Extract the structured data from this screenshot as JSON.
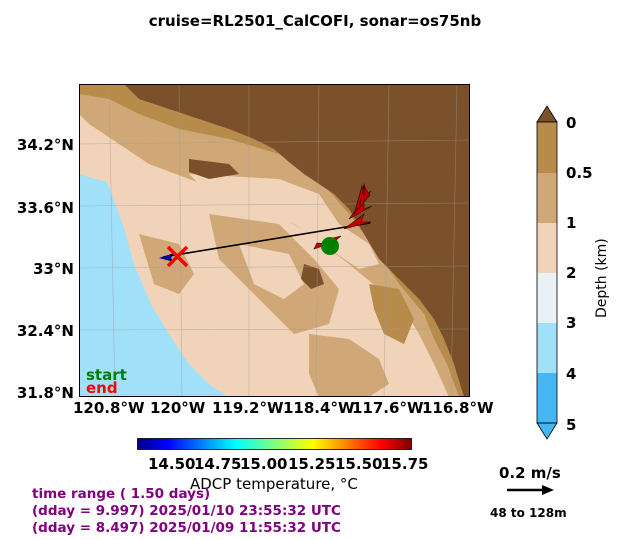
{
  "title": "cruise=RL2501_CalCOFI,   sonar=os75nb",
  "map": {
    "lat_labels": [
      "34.2°N",
      "33.6°N",
      "33°N",
      "32.4°N",
      "31.8°N"
    ],
    "lon_labels": [
      "120.8°W",
      "120°W",
      "119.2°W",
      "118.4°W",
      "117.6°W",
      "116.8°W"
    ],
    "extent": {
      "lon": [
        -121.0,
        -116.6
      ],
      "lat": [
        31.8,
        34.8
      ]
    }
  },
  "legend": {
    "start": "start",
    "end": "end",
    "start_color": "#008000",
    "end_color": "#ff0000"
  },
  "track": {
    "start": {
      "lon": -118.2,
      "lat": 33.2
    },
    "end": {
      "lon": -120.0,
      "lat": 33.1
    },
    "line": [
      [
        -120.1,
        33.1
      ],
      [
        -117.6,
        33.5
      ]
    ]
  },
  "depth_colorbar": {
    "label": "Depth (km)",
    "ticks": [
      "0",
      "0.5",
      "1",
      "2",
      "3",
      "4",
      "5"
    ],
    "colors": [
      "#b78c4b",
      "#d0a877",
      "#f0d3b8",
      "#e7f1f6",
      "#a0e0f8",
      "#45b6ef"
    ]
  },
  "temp_colorbar": {
    "label": "ADCP temperature, °C",
    "ticks": [
      "14.50",
      "14.75",
      "15.00",
      "15.25",
      "15.50",
      "15.75"
    ],
    "colormap": "jet"
  },
  "time_range": {
    "line1": "time range ( 1.50 days)",
    "line2": "(dday = 9.997) 2025/01/10 23:55:32 UTC",
    "line3": "(dday = 8.497) 2025/01/09 11:55:32 UTC"
  },
  "vector_scale": {
    "label": "0.2 m/s",
    "range": "48 to 128m"
  }
}
